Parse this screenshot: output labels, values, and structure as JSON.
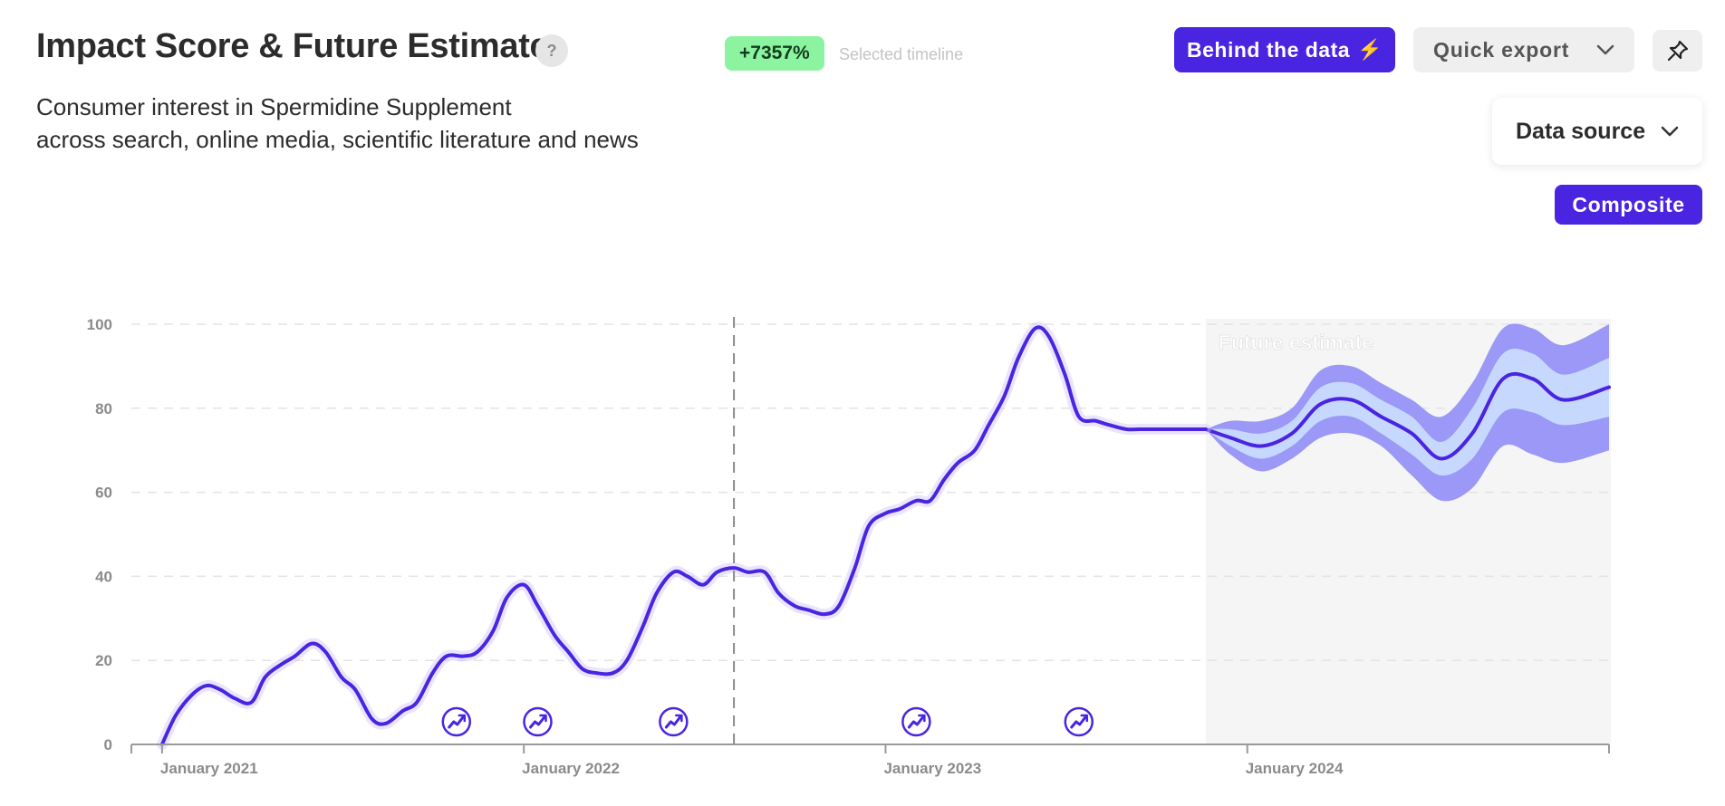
{
  "header": {
    "title": "Impact Score & Future Estimate",
    "help_label": "?",
    "subtitle_line1": "Consumer interest in Spermidine Supplement",
    "subtitle_line2": "across search, online media, scientific literature and news",
    "change_badge": "+7357%",
    "change_caption": "Selected timeline"
  },
  "toolbar": {
    "behind_label": "Behind the data",
    "export_label": "Quick export",
    "pin_icon": "pin-icon"
  },
  "controls": {
    "data_source_label": "Data source",
    "composite_label": "Composite"
  },
  "colors": {
    "accent": "#4a25e1",
    "badge": "#8cf3a0",
    "band_outer": "#9b98f7",
    "band_inner": "#c6d8fd",
    "forecast_bg": "#f5f5f5"
  },
  "chart_data": {
    "type": "line",
    "xlabel": "",
    "ylabel": "",
    "x_domain": [
      "2020-12-01",
      "2024-12-31"
    ],
    "ylim": [
      0,
      100
    ],
    "y_ticks": [
      0,
      20,
      40,
      60,
      80,
      100
    ],
    "x_ticks": [
      {
        "date": "2021-01-01",
        "label": "January 2021"
      },
      {
        "date": "2022-01-01",
        "label": "January 2022"
      },
      {
        "date": "2023-01-01",
        "label": "January 2023"
      },
      {
        "date": "2024-01-01",
        "label": "January 2024"
      }
    ],
    "grid": true,
    "marker_line_date": "2022-08-01",
    "forecast_start": "2023-11-20",
    "forecast_label": "Future estimate",
    "event_icon": "trend-icon",
    "event_dates": [
      "2021-10-25",
      "2022-01-15",
      "2022-06-01",
      "2023-02-01",
      "2023-07-15"
    ],
    "series": [
      {
        "x": [
          "2021-01-01",
          "2021-01-15",
          "2021-02-01",
          "2021-02-15",
          "2021-03-01",
          "2021-03-15",
          "2021-04-01",
          "2021-04-15",
          "2021-05-01",
          "2021-05-15",
          "2021-06-01",
          "2021-06-15",
          "2021-07-01",
          "2021-07-15",
          "2021-08-01",
          "2021-08-15",
          "2021-09-01",
          "2021-09-15",
          "2021-10-01",
          "2021-10-15",
          "2021-11-01",
          "2021-11-15",
          "2021-12-01",
          "2021-12-15",
          "2022-01-01",
          "2022-01-15",
          "2022-02-01",
          "2022-02-15",
          "2022-03-01",
          "2022-03-15",
          "2022-04-01",
          "2022-04-15",
          "2022-05-01",
          "2022-05-15",
          "2022-06-01",
          "2022-06-15",
          "2022-07-01",
          "2022-07-15",
          "2022-08-01",
          "2022-08-15",
          "2022-09-01",
          "2022-09-15",
          "2022-10-01",
          "2022-10-15",
          "2022-11-01",
          "2022-11-15",
          "2022-12-01",
          "2022-12-15",
          "2023-01-01",
          "2023-01-15",
          "2023-02-01",
          "2023-02-15",
          "2023-03-01",
          "2023-03-15",
          "2023-04-01",
          "2023-04-15",
          "2023-05-01",
          "2023-05-15",
          "2023-06-01",
          "2023-06-15",
          "2023-07-01",
          "2023-07-15",
          "2023-08-01",
          "2023-08-15",
          "2023-09-01",
          "2023-09-15",
          "2023-10-01",
          "2023-10-15",
          "2023-11-01",
          "2023-11-15",
          "2023-11-20"
        ],
        "values": [
          0,
          7,
          12,
          14,
          13,
          11,
          10,
          16,
          19,
          21,
          24,
          22,
          16,
          13,
          6,
          5,
          8,
          10,
          17,
          21,
          21,
          22,
          27,
          35,
          38,
          33,
          26,
          22,
          18,
          17,
          17,
          20,
          28,
          36,
          41,
          40,
          38,
          41,
          42,
          41,
          41,
          36,
          33,
          32,
          31,
          33,
          42,
          52,
          55,
          56,
          58,
          58,
          63,
          67,
          70,
          76,
          83,
          92,
          99,
          97,
          88,
          78,
          77,
          76,
          75,
          75,
          75,
          75,
          75,
          75,
          75
        ]
      }
    ],
    "forecast": {
      "x": [
        "2023-11-20",
        "2023-12-15",
        "2024-01-15",
        "2024-02-15",
        "2024-03-15",
        "2024-04-15",
        "2024-05-15",
        "2024-06-15",
        "2024-07-15",
        "2024-08-15",
        "2024-09-15",
        "2024-10-15",
        "2024-11-15",
        "2024-12-31"
      ],
      "mean": [
        75,
        73,
        71,
        74,
        81,
        82,
        78,
        74,
        68,
        74,
        87,
        87,
        82,
        85
      ],
      "inner_low": [
        75,
        71,
        68,
        71,
        77,
        78,
        74,
        69,
        64,
        68,
        79,
        79,
        76,
        78
      ],
      "inner_high": [
        75,
        75,
        74,
        77,
        85,
        86,
        82,
        78,
        72,
        80,
        93,
        93,
        88,
        92
      ],
      "outer_low": [
        75,
        69,
        65,
        68,
        73,
        74,
        71,
        64,
        58,
        61,
        71,
        69,
        67,
        70
      ],
      "outer_high": [
        75,
        77,
        77,
        80,
        89,
        90,
        86,
        82,
        78,
        86,
        99,
        99,
        95,
        100
      ]
    }
  }
}
